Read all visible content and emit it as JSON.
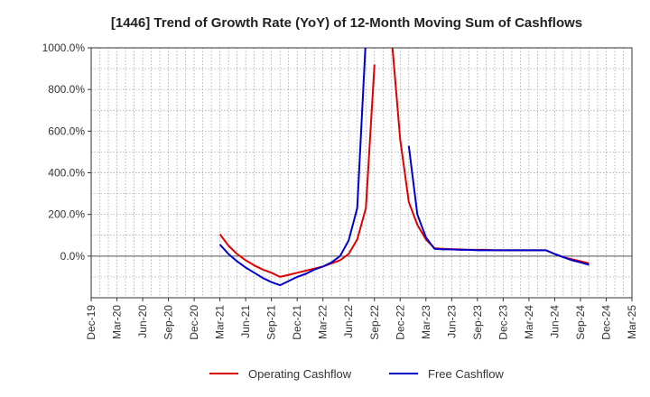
{
  "chart_data": {
    "type": "line",
    "title": "[1446]  Trend of Growth Rate (YoY) of 12-Month Moving Sum of Cashflows",
    "xlabel": "",
    "ylabel": "",
    "x_tick_labels": [
      "Dec-19",
      "Mar-20",
      "Jun-20",
      "Sep-20",
      "Dec-20",
      "Mar-21",
      "Jun-21",
      "Sep-21",
      "Dec-21",
      "Mar-22",
      "Jun-22",
      "Sep-22",
      "Dec-22",
      "Mar-23",
      "Jun-23",
      "Sep-23",
      "Dec-23",
      "Mar-24",
      "Jun-24",
      "Sep-24",
      "Dec-24",
      "Mar-25"
    ],
    "y_tick_labels": [
      "0.0%",
      "200.0%",
      "400.0%",
      "600.0%",
      "800.0%",
      "1000.0%"
    ],
    "y_tick_values": [
      0,
      200,
      400,
      600,
      800,
      1000
    ],
    "ylim": [
      -200,
      1000
    ],
    "x_months_range": [
      "Dec-19",
      "Mar-25"
    ],
    "grid": true,
    "legend_position": "bottom",
    "series": [
      {
        "name": "Operating Cashflow",
        "color": "#e00000",
        "points": [
          [
            "Mar-21",
            105
          ],
          [
            "Apr-21",
            50
          ],
          [
            "May-21",
            10
          ],
          [
            "Jun-21",
            -20
          ],
          [
            "Jul-21",
            -45
          ],
          [
            "Aug-21",
            -65
          ],
          [
            "Sep-21",
            -80
          ],
          [
            "Oct-21",
            -100
          ],
          [
            "Nov-21",
            -90
          ],
          [
            "Dec-21",
            -80
          ],
          [
            "Jan-22",
            -70
          ],
          [
            "Feb-22",
            -60
          ],
          [
            "Mar-22",
            -50
          ],
          [
            "Apr-22",
            -35
          ],
          [
            "May-22",
            -20
          ],
          [
            "Jun-22",
            10
          ],
          [
            "Jul-22",
            80
          ],
          [
            "Aug-22",
            230
          ],
          [
            "Sep-22",
            920
          ],
          null,
          [
            "Nov-22",
            1050
          ],
          [
            "Dec-22",
            560
          ],
          [
            "Jan-23",
            260
          ],
          [
            "Feb-23",
            150
          ],
          [
            "Mar-23",
            80
          ],
          [
            "Apr-23",
            38
          ],
          [
            "May-23",
            35
          ],
          [
            "Jun-23",
            33
          ],
          [
            "Jul-23",
            32
          ],
          [
            "Aug-23",
            30
          ],
          [
            "Sep-23",
            30
          ],
          [
            "Oct-23",
            30
          ],
          [
            "Nov-23",
            28
          ],
          [
            "Dec-23",
            28
          ],
          [
            "Jan-24",
            28
          ],
          [
            "Feb-24",
            28
          ],
          [
            "Mar-24",
            28
          ],
          [
            "Apr-24",
            28
          ],
          [
            "May-24",
            28
          ],
          [
            "Jun-24",
            10
          ],
          [
            "Jul-24",
            -5
          ],
          [
            "Aug-24",
            -15
          ],
          [
            "Sep-24",
            -25
          ],
          [
            "Oct-24",
            -35
          ]
        ]
      },
      {
        "name": "Free Cashflow",
        "color": "#0000cc",
        "points": [
          [
            "Mar-21",
            55
          ],
          [
            "Apr-21",
            10
          ],
          [
            "May-21",
            -25
          ],
          [
            "Jun-21",
            -55
          ],
          [
            "Jul-21",
            -80
          ],
          [
            "Aug-21",
            -105
          ],
          [
            "Sep-21",
            -125
          ],
          [
            "Oct-21",
            -140
          ],
          [
            "Nov-21",
            -120
          ],
          [
            "Dec-21",
            -100
          ],
          [
            "Jan-22",
            -85
          ],
          [
            "Feb-22",
            -65
          ],
          [
            "Mar-22",
            -50
          ],
          [
            "Apr-22",
            -30
          ],
          [
            "May-22",
            0
          ],
          [
            "Jun-22",
            75
          ],
          [
            "Jul-22",
            230
          ],
          [
            "Aug-22",
            1050
          ],
          null,
          [
            "Jan-23",
            530
          ],
          [
            "Feb-23",
            200
          ],
          [
            "Mar-23",
            90
          ],
          [
            "Apr-23",
            35
          ],
          [
            "May-23",
            32
          ],
          [
            "Jun-23",
            32
          ],
          [
            "Jul-23",
            30
          ],
          [
            "Aug-23",
            30
          ],
          [
            "Sep-23",
            28
          ],
          [
            "Oct-23",
            28
          ],
          [
            "Nov-23",
            28
          ],
          [
            "Dec-23",
            28
          ],
          [
            "Jan-24",
            28
          ],
          [
            "Feb-24",
            28
          ],
          [
            "Mar-24",
            28
          ],
          [
            "Apr-24",
            28
          ],
          [
            "May-24",
            28
          ],
          [
            "Jun-24",
            10
          ],
          [
            "Jul-24",
            -5
          ],
          [
            "Aug-24",
            -20
          ],
          [
            "Sep-24",
            -30
          ],
          [
            "Oct-24",
            -42
          ]
        ]
      }
    ]
  }
}
